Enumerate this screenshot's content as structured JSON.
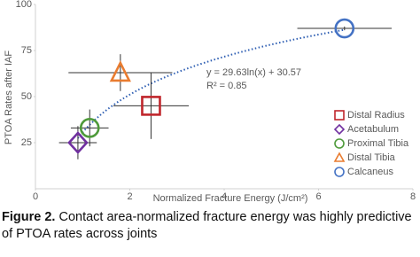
{
  "chart_data": {
    "type": "scatter",
    "xlabel": "Normalized Fracture Energy (J/cm²)",
    "ylabel": "PTOA Rates after IAF",
    "xlim": [
      0,
      8
    ],
    "ylim": [
      0,
      100
    ],
    "xticks": [
      0,
      2,
      4,
      6,
      8
    ],
    "yticks": [
      25,
      50,
      75,
      100
    ],
    "series": [
      {
        "name": "Distal Radius",
        "color": "#c0262c",
        "marker": "square",
        "x": [
          2.45
        ],
        "values": [
          45
        ],
        "xerr": [
          0.8
        ],
        "yerr": [
          18
        ]
      },
      {
        "name": "Acetabulum",
        "color": "#7030a0",
        "marker": "diamond",
        "x": [
          0.9
        ],
        "values": [
          25
        ],
        "xerr": [
          0.4
        ],
        "yerr": [
          9
        ]
      },
      {
        "name": "Proximal Tibia",
        "color": "#4e9a3a",
        "marker": "circle",
        "x": [
          1.15
        ],
        "values": [
          33
        ],
        "xerr": [
          0.4
        ],
        "yerr": [
          10
        ]
      },
      {
        "name": "Distal Tibia",
        "color": "#e97c30",
        "marker": "triangle",
        "x": [
          1.8
        ],
        "values": [
          63
        ],
        "xerr": [
          1.1
        ],
        "yerr": [
          10
        ]
      },
      {
        "name": "Calcaneus",
        "color": "#4472c4",
        "marker": "circle",
        "x": [
          6.55
        ],
        "values": [
          87
        ],
        "xerr": [
          1.0
        ],
        "yerr": [
          1
        ]
      }
    ],
    "trendline": {
      "equation": "y = 29.63ln(x) + 30.57",
      "r2": "R² = 0.85",
      "a": 29.63,
      "b": 30.57,
      "color": "#2f5fb3"
    }
  },
  "caption": {
    "label": "Figure 2.",
    "text": "Contact area-normalized fracture energy was highly predictive of PTOA rates across joints"
  }
}
